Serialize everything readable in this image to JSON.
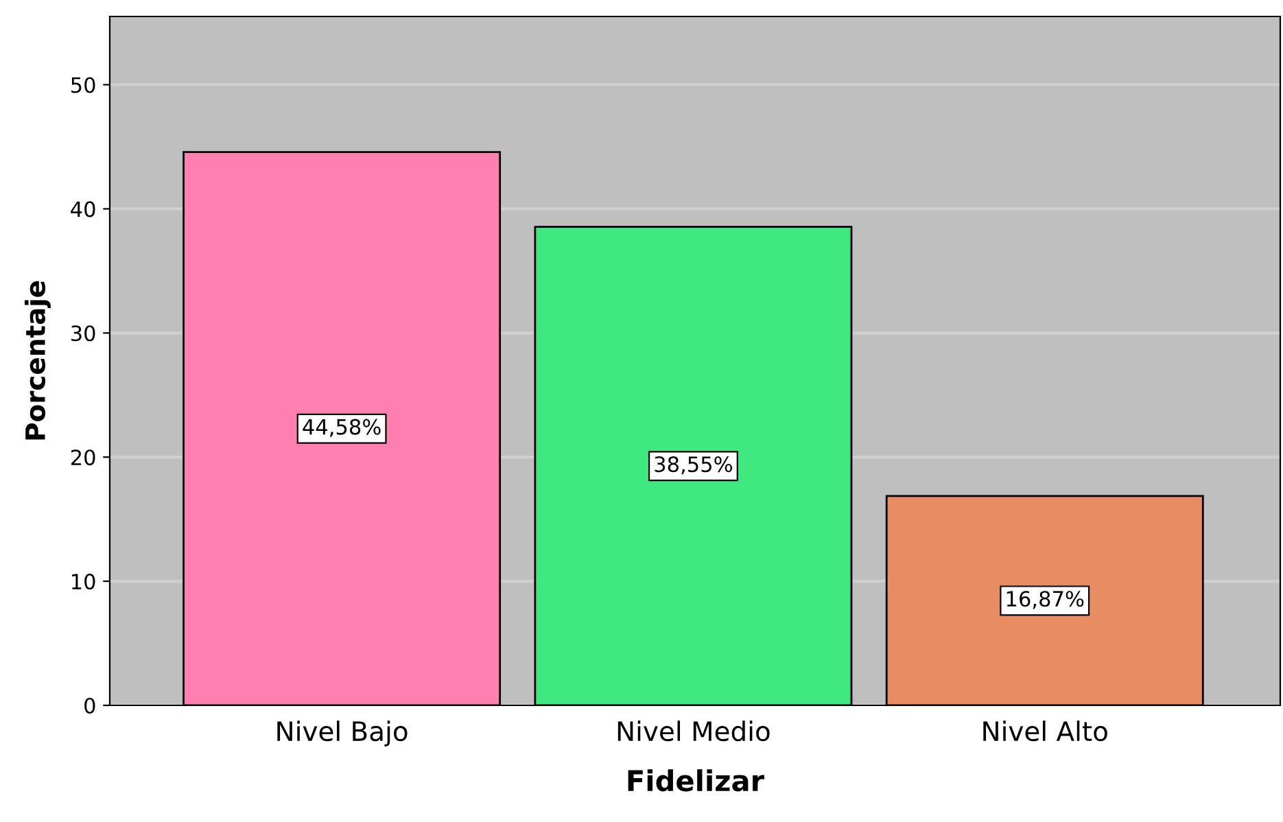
{
  "chart_data": {
    "type": "bar",
    "xlabel": "Fidelizar",
    "ylabel": "Porcentaje",
    "categories": [
      "Nivel Bajo",
      "Nivel Medio",
      "Nivel Alto"
    ],
    "values": [
      44.58,
      38.55,
      16.87
    ],
    "colors": [
      "#ff80b0",
      "#40e880",
      "#e88c64"
    ],
    "value_labels": [
      "44,58%",
      "38,55%",
      "16,87%"
    ],
    "ylim": [
      0,
      55.5
    ],
    "yticks": [
      0,
      10,
      20,
      30,
      40,
      50
    ],
    "grid": "y"
  }
}
